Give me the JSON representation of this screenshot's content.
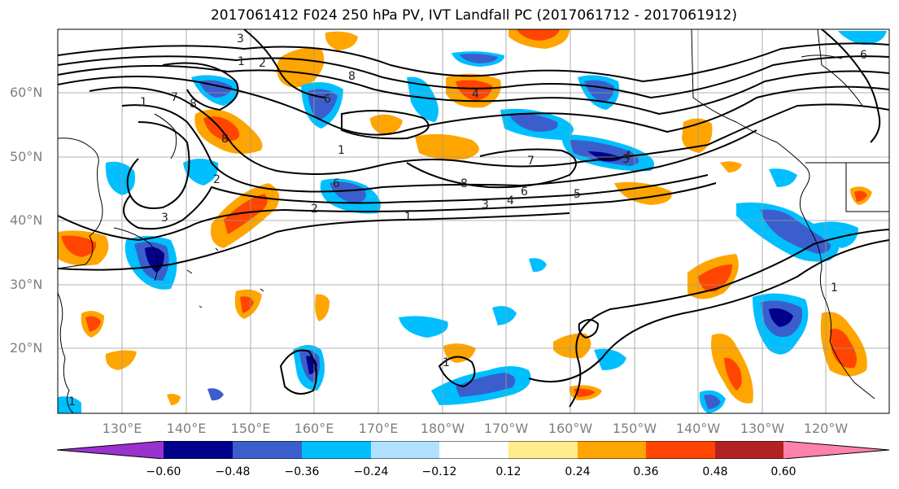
{
  "title": "2017061412 F024 250 hPa PV, IVT Landfall PC (2017061712 - 2017061912)",
  "lat_labels": [
    "60°N",
    "50°N",
    "40°N",
    "30°N",
    "20°N"
  ],
  "lon_labels": [
    "130°E",
    "140°E",
    "150°E",
    "160°E",
    "170°E",
    "180°W",
    "170°W",
    "160°W",
    "150°W",
    "140°W",
    "130°W",
    "120°W"
  ],
  "colorbar": {
    "tick_labels": [
      "−0.60",
      "−0.48",
      "−0.36",
      "−0.24",
      "−0.12",
      "0.12",
      "0.24",
      "0.36",
      "0.48",
      "0.60"
    ],
    "colors": [
      "#9a32cd",
      "#00008b",
      "#3a5fcd",
      "#00bfff",
      "#b0e2ff",
      "#ffffff",
      "#ffec8b",
      "#ffa500",
      "#ff4500",
      "#b22222",
      "#ff82ab"
    ]
  },
  "contour_labels": [
    "3",
    "2",
    "1",
    "6",
    "8",
    "4",
    "7",
    "8",
    "5",
    "4",
    "6",
    "3",
    "2",
    "1",
    "1",
    "8",
    "7",
    "6",
    "8",
    "6",
    "5",
    "4",
    "3",
    "1",
    "2",
    "1",
    "1",
    "1"
  ]
}
